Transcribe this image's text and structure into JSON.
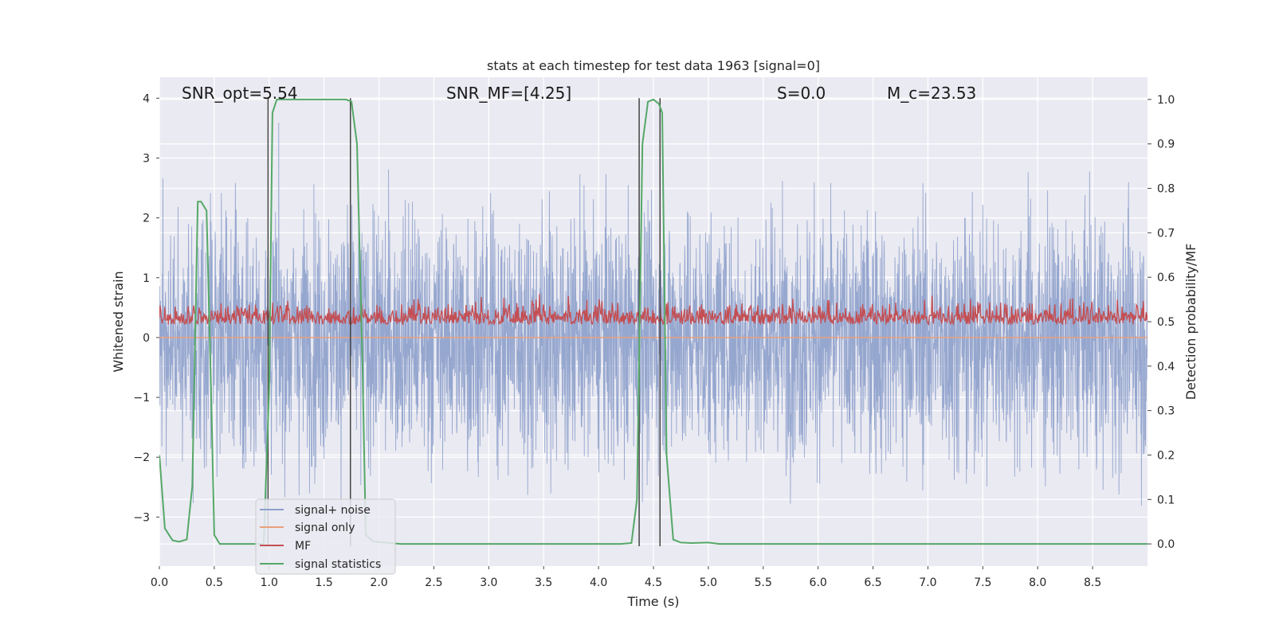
{
  "chart_data": {
    "type": "line",
    "title": "stats at each timestep for test data 1963 [signal=0]",
    "xlabel": "Time (s)",
    "ylabel": "Whitened strain",
    "ylabel_right": "Detection probability/MF",
    "xlim": [
      0,
      9
    ],
    "ylim": [
      -3.82,
      4.35
    ],
    "ylim_right": [
      -0.05,
      1.05
    ],
    "grid": true,
    "x_ticks": [
      0.0,
      0.5,
      1.0,
      1.5,
      2.0,
      2.5,
      3.0,
      3.5,
      4.0,
      4.5,
      5.0,
      5.5,
      6.0,
      6.5,
      7.0,
      7.5,
      8.0,
      8.5
    ],
    "x_tick_labels": [
      "0.0",
      "0.5",
      "1.0",
      "1.5",
      "2.0",
      "2.5",
      "3.0",
      "3.5",
      "4.0",
      "4.5",
      "5.0",
      "5.5",
      "6.0",
      "6.5",
      "7.0",
      "7.5",
      "8.0",
      "8.5"
    ],
    "y_ticks": [
      4,
      3,
      2,
      1,
      0,
      -1,
      -2,
      -3
    ],
    "y_tick_labels": [
      "4",
      "3",
      "2",
      "1",
      "0",
      "−1",
      "−2",
      "−3"
    ],
    "y_right_ticks": [
      1.0,
      0.9,
      0.8,
      0.7,
      0.6,
      0.5,
      0.4,
      0.3,
      0.2,
      0.1,
      0.0
    ],
    "y_right_tick_labels": [
      "1.0",
      "0.9",
      "0.8",
      "0.7",
      "0.6",
      "0.5",
      "0.4",
      "0.3",
      "0.2",
      "0.1",
      "0.0"
    ],
    "annotations": [
      {
        "name": "snr-opt",
        "text": "SNR_opt=5.54"
      },
      {
        "name": "snr-mf",
        "text": "SNR_MF=[4.25]"
      },
      {
        "name": "s-value",
        "text": "S=0.0"
      },
      {
        "name": "chirp-mass",
        "text": "M_c=23.53"
      }
    ],
    "vlines": [
      0.99,
      1.74,
      4.37,
      4.56
    ],
    "legend_position": "lower-left",
    "series": [
      {
        "name": "signal+ noise",
        "axis": "left",
        "color": "#8da0cb",
        "style": "noise",
        "sample_rate": 400,
        "amplitude_range": [
          -3.6,
          3.85
        ]
      },
      {
        "name": "signal only",
        "axis": "left",
        "color": "#e8a07e",
        "x": [
          0,
          9
        ],
        "values": [
          0,
          0
        ]
      },
      {
        "name": "MF",
        "axis": "left",
        "color": "#c44e52",
        "style": "noise",
        "sample_rate": 160,
        "amplitude_range": [
          0.0,
          1.0
        ]
      },
      {
        "name": "signal statistics",
        "axis": "right",
        "color": "#55a868",
        "x": [
          0.0,
          0.05,
          0.12,
          0.18,
          0.25,
          0.3,
          0.35,
          0.38,
          0.43,
          0.47,
          0.5,
          0.55,
          0.6,
          0.95,
          1.0,
          1.03,
          1.07,
          1.1,
          1.3,
          1.6,
          1.7,
          1.75,
          1.8,
          1.85,
          1.88,
          1.95,
          2.2,
          4.2,
          4.3,
          4.35,
          4.4,
          4.45,
          4.5,
          4.55,
          4.58,
          4.62,
          4.68,
          4.75,
          4.85,
          5.0,
          5.1,
          9.0
        ],
        "values": [
          0.2,
          0.035,
          0.008,
          0.005,
          0.01,
          0.13,
          0.77,
          0.77,
          0.75,
          0.35,
          0.02,
          0.0,
          0.0,
          0.0,
          0.35,
          0.97,
          1.0,
          1.0,
          1.0,
          1.0,
          1.0,
          0.995,
          0.9,
          0.4,
          0.02,
          0.005,
          0.0,
          0.0,
          0.002,
          0.1,
          0.9,
          0.995,
          1.0,
          0.99,
          0.97,
          0.2,
          0.01,
          0.003,
          0.002,
          0.003,
          0.0,
          0.0
        ]
      }
    ]
  }
}
